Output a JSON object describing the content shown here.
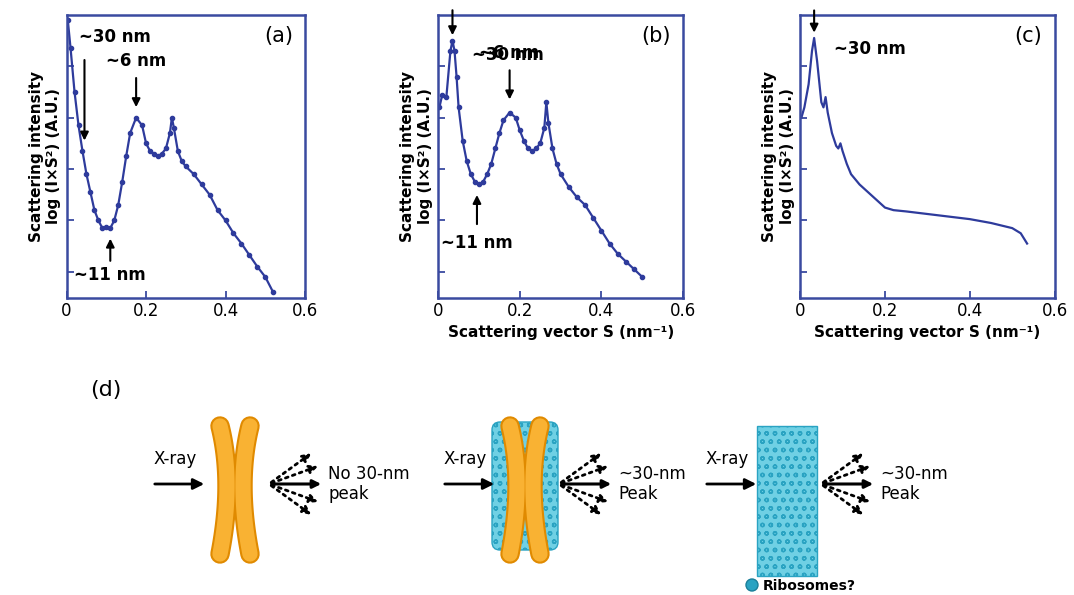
{
  "chart_data": [
    {
      "type": "line",
      "title": "(a)",
      "y_label": "Scattering intensity\nlog (I×S²) (A.U.)",
      "x": [
        0.003,
        0.01,
        0.02,
        0.03,
        0.04,
        0.05,
        0.06,
        0.07,
        0.08,
        0.09,
        0.1,
        0.11,
        0.12,
        0.13,
        0.14,
        0.15,
        0.16,
        0.175,
        0.19,
        0.2,
        0.21,
        0.22,
        0.23,
        0.24,
        0.25,
        0.26,
        0.265,
        0.27,
        0.28,
        0.29,
        0.3,
        0.32,
        0.34,
        0.36,
        0.38,
        0.4,
        0.42,
        0.44,
        0.46,
        0.48,
        0.5,
        0.52
      ],
      "values": [
        10.8,
        9.7,
        8.0,
        6.7,
        5.7,
        4.8,
        4.1,
        3.4,
        3.0,
        2.7,
        2.75,
        2.7,
        3.0,
        3.6,
        4.5,
        5.5,
        6.4,
        7.0,
        6.7,
        6.0,
        5.7,
        5.6,
        5.5,
        5.6,
        5.8,
        6.4,
        7.0,
        6.6,
        5.7,
        5.3,
        5.1,
        4.8,
        4.4,
        4.0,
        3.4,
        3.0,
        2.5,
        2.1,
        1.65,
        1.2,
        0.8,
        0.2
      ],
      "color": "#2e3b9c",
      "marker": "o",
      "line_style": "solid",
      "xlim": [
        0,
        0.6
      ],
      "xticks": [
        0,
        0.2,
        0.4,
        0.6
      ],
      "ylim": [
        0,
        11
      ],
      "yticks": [
        1,
        3,
        5,
        7,
        9
      ],
      "tick_labels": "x",
      "annotations": [
        {
          "text": "~30 nm",
          "x": 0.045,
          "y": 6.0
        },
        {
          "text": "~6 nm",
          "x": 0.175,
          "y": 7.3
        },
        {
          "text": "~11 nm",
          "x": 0.11,
          "y": 2.4
        }
      ]
    },
    {
      "type": "line",
      "title": "(b)",
      "y_label": "Scattering intensity\nlog (I×S²) (A.U.)",
      "x_label": "Scattering vector S (nm⁻¹)",
      "x": [
        0.003,
        0.01,
        0.02,
        0.03,
        0.035,
        0.04,
        0.045,
        0.05,
        0.06,
        0.07,
        0.08,
        0.09,
        0.1,
        0.11,
        0.12,
        0.13,
        0.14,
        0.15,
        0.16,
        0.175,
        0.19,
        0.2,
        0.21,
        0.22,
        0.23,
        0.24,
        0.25,
        0.26,
        0.265,
        0.27,
        0.28,
        0.29,
        0.3,
        0.32,
        0.34,
        0.36,
        0.38,
        0.4,
        0.42,
        0.44,
        0.46,
        0.48,
        0.5
      ],
      "values": [
        7.4,
        7.9,
        7.8,
        9.6,
        10.0,
        9.6,
        8.6,
        7.4,
        6.1,
        5.3,
        4.8,
        4.5,
        4.4,
        4.5,
        4.8,
        5.2,
        5.8,
        6.4,
        6.9,
        7.2,
        7.0,
        6.5,
        6.1,
        5.8,
        5.7,
        5.8,
        6.0,
        6.6,
        7.6,
        6.8,
        5.8,
        5.2,
        4.8,
        4.3,
        3.9,
        3.6,
        3.1,
        2.6,
        2.1,
        1.7,
        1.4,
        1.1,
        0.8
      ],
      "color": "#2e3b9c",
      "marker": "o",
      "line_style": "solid",
      "xlim": [
        0,
        0.6
      ],
      "xticks": [
        0,
        0.2,
        0.4,
        0.6
      ],
      "ylim": [
        0,
        11
      ],
      "yticks": [
        1,
        3,
        5,
        7,
        9
      ],
      "tick_labels": "x",
      "annotations": [
        {
          "text": "~30 nm",
          "x": 0.035,
          "y": 10.1
        },
        {
          "text": "~6 nm",
          "x": 0.175,
          "y": 7.6
        },
        {
          "text": "~11 nm",
          "x": 0.095,
          "y": 4.1
        }
      ]
    },
    {
      "type": "line",
      "title": "(c)",
      "y_label": "Scattering intensity\nlog (I×S²) (A.U.)",
      "x_label": "Scattering vector S (nm⁻¹)",
      "x": [
        0.003,
        0.01,
        0.02,
        0.028,
        0.033,
        0.04,
        0.05,
        0.055,
        0.06,
        0.065,
        0.075,
        0.085,
        0.09,
        0.095,
        0.1,
        0.11,
        0.12,
        0.14,
        0.16,
        0.18,
        0.2,
        0.22,
        0.25,
        0.3,
        0.35,
        0.4,
        0.45,
        0.5,
        0.52,
        0.535
      ],
      "values": [
        7.0,
        7.4,
        8.3,
        9.6,
        10.1,
        9.2,
        7.6,
        7.4,
        7.8,
        7.2,
        6.4,
        5.9,
        5.8,
        6.0,
        5.7,
        5.2,
        4.8,
        4.4,
        4.1,
        3.8,
        3.5,
        3.4,
        3.35,
        3.25,
        3.15,
        3.05,
        2.9,
        2.7,
        2.5,
        2.1
      ],
      "color": "#2e3b9c",
      "marker": "none",
      "line_style": "solid",
      "xlim": [
        0,
        0.6
      ],
      "xticks": [
        0,
        0.2,
        0.4,
        0.6
      ],
      "ylim": [
        0,
        11
      ],
      "yticks": [
        1,
        3,
        5,
        7,
        9
      ],
      "tick_labels": "x",
      "annotations": [
        {
          "text": "~30 nm",
          "x": 0.033,
          "y": 10.2
        }
      ]
    }
  ],
  "diagram": {
    "label": "(d)",
    "items": [
      {
        "input": "X-ray",
        "output": "No 30-nm\npeak"
      },
      {
        "input": "X-ray",
        "output": "~30-nm\nPeak"
      },
      {
        "input": "X-ray",
        "output": "~30-nm\nPeak"
      }
    ],
    "icon_label": "Ribosomes?"
  }
}
